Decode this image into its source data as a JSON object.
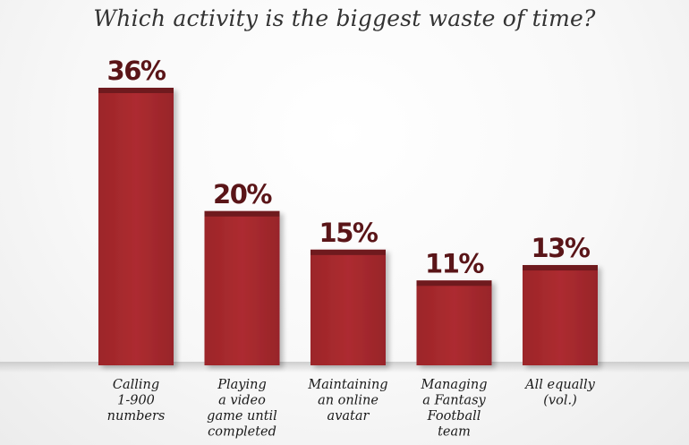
{
  "chart_data": {
    "type": "bar",
    "title": "Which activity is the biggest waste of time?",
    "categories": [
      [
        "Calling",
        "1-900",
        "numbers"
      ],
      [
        "Playing",
        "a video",
        "game until",
        "completed"
      ],
      [
        "Maintaining",
        "an online",
        "avatar"
      ],
      [
        "Managing",
        "a Fantasy",
        "Football",
        "team"
      ],
      [
        "All equally",
        "(vol.)"
      ]
    ],
    "values": [
      36,
      20,
      15,
      11,
      13
    ],
    "value_labels": [
      "36%",
      "20%",
      "15%",
      "11%",
      "13%"
    ],
    "xlabel": "",
    "ylabel": "",
    "ylim": [
      0,
      36
    ],
    "grid": false,
    "legend": "none"
  },
  "colors": {
    "bar": "#a5282c",
    "bar_top": "#6f1a1e",
    "value_text": "#5a1518"
  }
}
